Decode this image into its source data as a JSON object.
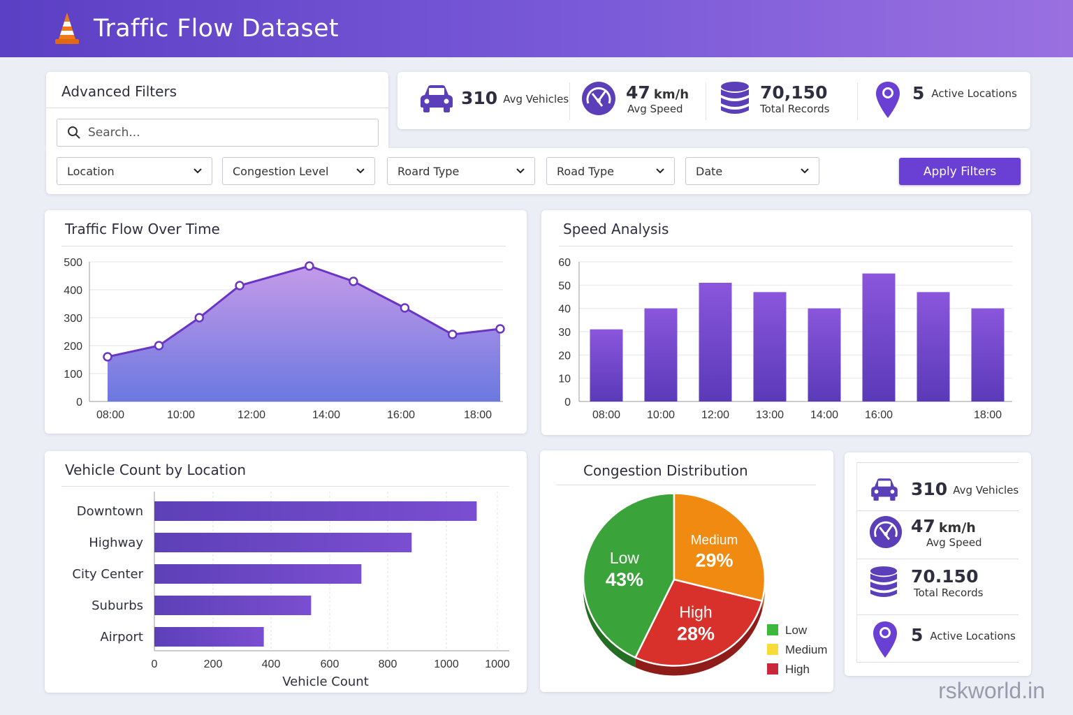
{
  "header": {
    "title": "Traffic Flow Dataset",
    "logo_icon": "traffic-cone-icon"
  },
  "filters": {
    "title": "Advanced Filters",
    "search_placeholder": "Search...",
    "dropdowns": [
      "Location",
      "Congestion Level",
      "Roard Type",
      "Road Type",
      "Date"
    ],
    "apply_label": "Apply Filters"
  },
  "stats": {
    "avg_vehicles": {
      "value": "310",
      "label": "Avg Vehicles",
      "icon": "car-icon"
    },
    "avg_speed": {
      "value": "47",
      "unit": "km/h",
      "label": "Avg Speed",
      "icon": "speedometer-icon"
    },
    "total_records": {
      "value": "70,150",
      "label": "Total Records",
      "icon": "database-icon"
    },
    "active_locations": {
      "value": "5",
      "label": "Active Locations",
      "icon": "location-pin-icon"
    }
  },
  "side_stats": {
    "avg_vehicles": {
      "value": "310",
      "label": "Avg Vehicles"
    },
    "avg_speed": {
      "value": "47",
      "unit": "km/h",
      "label": "Avg Speed"
    },
    "total_records": {
      "value": "70.150",
      "label": "Total Records"
    },
    "active_locations": {
      "value": "5",
      "label": "Active Locations"
    }
  },
  "chart_data": [
    {
      "type": "area",
      "title": "Traffic Flow Over Time",
      "x_ticks": [
        "08:00",
        "10:00",
        "12:00",
        "14:00",
        "16:00",
        "18:00"
      ],
      "y_ticks": [
        0,
        100,
        200,
        300,
        400,
        500
      ],
      "ylim": [
        0,
        500
      ],
      "xlim": [
        7.9,
        18.6
      ],
      "x": [
        7.9,
        9.3,
        10.4,
        11.5,
        13.4,
        14.6,
        16.0,
        17.3,
        18.6
      ],
      "values": [
        160,
        200,
        300,
        415,
        485,
        430,
        335,
        240,
        260
      ],
      "grid": true
    },
    {
      "type": "bar",
      "title": "Speed Analysis",
      "categories": [
        "08:00",
        "10:00",
        "12:00",
        "13:00",
        "14:00",
        "16:00",
        "",
        "18:00"
      ],
      "values": [
        31,
        40,
        51,
        47,
        40,
        55,
        47,
        40
      ],
      "y_ticks": [
        0,
        10,
        20,
        30,
        40,
        50,
        60
      ],
      "ylim": [
        0,
        60
      ],
      "grid": true
    },
    {
      "type": "bar",
      "orientation": "horizontal",
      "title": "Vehicle Count by Location",
      "categories": [
        "Downtown",
        "Highway",
        "City Center",
        "Suburbs",
        "Airport"
      ],
      "values": [
        1090,
        870,
        700,
        530,
        370
      ],
      "x_ticks": [
        "0",
        "200",
        "400",
        "600",
        "800",
        "1000",
        "1000"
      ],
      "xlabel": "Vehicle Count",
      "xlim": [
        0,
        1200
      ],
      "grid": true
    },
    {
      "type": "pie",
      "title": "Congestion Distribution",
      "slices": [
        {
          "name": "Low",
          "value": 43,
          "label": "43%",
          "color": "#3aa43a"
        },
        {
          "name": "Medium",
          "value": 29,
          "label": "29%",
          "color": "#f08a10"
        },
        {
          "name": "High",
          "value": 28,
          "label": "28%",
          "color": "#d8302a"
        }
      ],
      "legend": [
        {
          "name": "Low",
          "color": "#3db83d"
        },
        {
          "name": "Medium",
          "color": "#f5dc3a"
        },
        {
          "name": "High",
          "color": "#c8283a"
        }
      ],
      "legend_position": "bottom-right"
    }
  ],
  "watermark": "rskworld.in"
}
